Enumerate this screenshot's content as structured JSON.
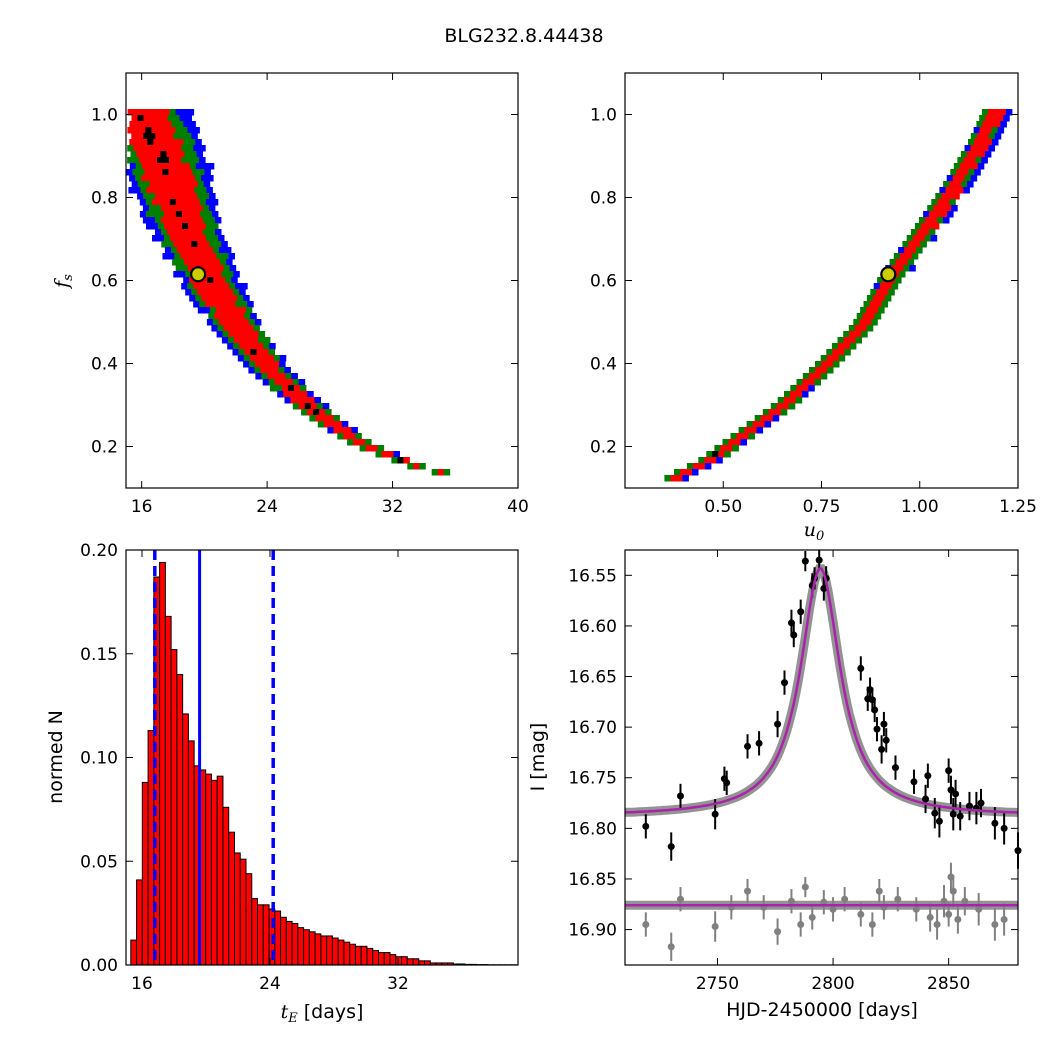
{
  "title": "BLG232.8.44438",
  "chart_data": [
    {
      "panel": "top-left",
      "type": "heatmap",
      "xlabel": "",
      "ylabel": "f_s",
      "xlim": [
        15,
        40
      ],
      "ylim": [
        0.1,
        1.1
      ],
      "xticks": [
        16,
        24,
        32,
        40
      ],
      "yticks": [
        0.2,
        0.4,
        0.6,
        0.8,
        1.0
      ],
      "xtick_labels": [
        "16",
        "24",
        "32",
        "40"
      ],
      "ytick_labels": [
        "0.2",
        "0.4",
        "0.6",
        "0.8",
        "1.0"
      ],
      "confidence_colors": [
        "#0000ff",
        "#008000",
        "#ff0000",
        "#000000"
      ],
      "ridge_curve": {
        "x": [
          15.6,
          17,
          18,
          19,
          20,
          21,
          22,
          24,
          26,
          28,
          30,
          32,
          34,
          36
        ],
        "y": [
          1.02,
          0.92,
          0.8,
          0.7,
          0.62,
          0.55,
          0.49,
          0.39,
          0.32,
          0.26,
          0.21,
          0.18,
          0.15,
          0.14
        ]
      },
      "best_fit": {
        "x": 19.6,
        "y": 0.615
      }
    },
    {
      "panel": "top-right",
      "type": "heatmap",
      "xlabel": "u_0",
      "ylabel": "",
      "xlim": [
        0.25,
        1.25
      ],
      "ylim": [
        0.1,
        1.1
      ],
      "xticks": [
        0.5,
        0.75,
        1.0,
        1.25
      ],
      "yticks": [
        0.2,
        0.4,
        0.6,
        0.8,
        1.0
      ],
      "xtick_labels": [
        "0.50",
        "0.75",
        "1.00",
        "1.25"
      ],
      "ytick_labels": [
        "0.2",
        "0.4",
        "0.6",
        "0.8",
        "1.0"
      ],
      "confidence_colors": [
        "#0000ff",
        "#008000",
        "#ff0000",
        "#000000"
      ],
      "ridge_curve": {
        "x": [
          0.37,
          0.45,
          0.55,
          0.65,
          0.75,
          0.85,
          0.92,
          1.0,
          1.08,
          1.15,
          1.19
        ],
        "y": [
          0.135,
          0.17,
          0.24,
          0.31,
          0.4,
          0.5,
          0.615,
          0.72,
          0.83,
          0.94,
          1.02
        ]
      },
      "best_fit": {
        "x": 0.92,
        "y": 0.615
      }
    },
    {
      "panel": "bottom-left",
      "type": "bar",
      "xlabel": "t_E [days]",
      "ylabel": "normed N",
      "xlim": [
        15,
        39.5
      ],
      "ylim": [
        0,
        0.2
      ],
      "xticks": [
        16,
        24,
        32
      ],
      "yticks": [
        0,
        0.05,
        0.1,
        0.15,
        0.2
      ],
      "xtick_labels": [
        "16",
        "24",
        "32"
      ],
      "ytick_labels": [
        "0.00",
        "0.05",
        "0.10",
        "0.15",
        "0.20"
      ],
      "bin_start": 15.3,
      "bin_width": 0.36,
      "values": [
        0.012,
        0.041,
        0.088,
        0.113,
        0.187,
        0.194,
        0.168,
        0.152,
        0.14,
        0.121,
        0.108,
        0.096,
        0.094,
        0.092,
        0.089,
        0.091,
        0.076,
        0.064,
        0.054,
        0.051,
        0.044,
        0.032,
        0.029,
        0.029,
        0.027,
        0.026,
        0.023,
        0.021,
        0.02,
        0.018,
        0.017,
        0.016,
        0.015,
        0.014,
        0.014,
        0.013,
        0.012,
        0.011,
        0.01,
        0.009,
        0.009,
        0.008,
        0.007,
        0.006,
        0.006,
        0.005,
        0.004,
        0.004,
        0.003,
        0.003,
        0.002,
        0.002,
        0.001,
        0.001,
        0.001,
        0.001,
        0.0005,
        0.0005,
        0.0003,
        0.0003,
        0.0002,
        0.0002,
        0.0001,
        0.0001,
        0.0001,
        0.0001,
        0.0001
      ],
      "median_line": 19.6,
      "interval_lines": [
        16.8,
        24.2
      ],
      "line_color": "#0000ff",
      "bar_color": "#ff0000"
    },
    {
      "panel": "bottom-right",
      "type": "scatter",
      "xlabel": "HJD-2450000 [days]",
      "ylabel": "I [mag]",
      "xlim": [
        2710,
        2880
      ],
      "ylim": [
        16.935,
        16.525
      ],
      "y_inverted": true,
      "xticks": [
        2750,
        2800,
        2850
      ],
      "yticks": [
        16.55,
        16.6,
        16.65,
        16.7,
        16.75,
        16.8,
        16.85,
        16.9
      ],
      "xtick_labels": [
        "2750",
        "2800",
        "2850"
      ],
      "ytick_labels": [
        "16.55",
        "16.60",
        "16.65",
        "16.70",
        "16.75",
        "16.80",
        "16.85",
        "16.90"
      ],
      "model": {
        "t0": 2794.5,
        "baseline": 16.788,
        "peak": 16.543,
        "width": 10.5,
        "color": "#aa22aa"
      },
      "residual_baseline": 16.876,
      "series": [
        {
          "color": "#000000",
          "x": [
            2719,
            2730,
            2734,
            2749,
            2753,
            2754,
            2763,
            2768,
            2776,
            2779,
            2782,
            2783,
            2786,
            2788,
            2791,
            2792,
            2794,
            2796,
            2797,
            2812,
            2815,
            2816,
            2817,
            2818,
            2819,
            2821,
            2822,
            2823,
            2827,
            2835,
            2840,
            2841,
            2844,
            2846,
            2850,
            2851,
            2852,
            2853,
            2855,
            2859,
            2862,
            2864,
            2870,
            2874,
            2880
          ],
          "y": [
            16.798,
            16.818,
            16.768,
            16.786,
            16.751,
            16.755,
            16.719,
            16.716,
            16.697,
            16.656,
            16.597,
            16.609,
            16.586,
            16.536,
            16.56,
            16.553,
            16.535,
            16.563,
            16.553,
            16.642,
            16.672,
            16.663,
            16.673,
            16.683,
            16.702,
            16.722,
            16.697,
            16.713,
            16.74,
            16.754,
            16.771,
            16.748,
            16.785,
            16.793,
            16.743,
            16.762,
            16.786,
            16.766,
            16.788,
            16.778,
            16.78,
            16.775,
            16.795,
            16.8,
            16.822
          ],
          "yerr": [
            0.012,
            0.014,
            0.012,
            0.015,
            0.012,
            0.012,
            0.012,
            0.012,
            0.013,
            0.012,
            0.013,
            0.012,
            0.012,
            0.01,
            0.012,
            0.011,
            0.01,
            0.012,
            0.012,
            0.012,
            0.012,
            0.012,
            0.012,
            0.012,
            0.012,
            0.014,
            0.012,
            0.012,
            0.012,
            0.012,
            0.014,
            0.012,
            0.015,
            0.016,
            0.012,
            0.014,
            0.016,
            0.014,
            0.014,
            0.014,
            0.016,
            0.014,
            0.016,
            0.016,
            0.018
          ]
        },
        {
          "color": "#808080",
          "x": [
            2719,
            2730,
            2734,
            2749,
            2756,
            2763,
            2770,
            2776,
            2782,
            2786,
            2788,
            2791,
            2796,
            2800,
            2805,
            2812,
            2817,
            2820,
            2822,
            2828,
            2836,
            2842,
            2845,
            2848,
            2850,
            2851,
            2852,
            2854,
            2857,
            2863,
            2870,
            2874
          ],
          "y": [
            16.895,
            16.917,
            16.87,
            16.897,
            16.878,
            16.862,
            16.878,
            16.902,
            16.872,
            16.895,
            16.858,
            16.888,
            16.873,
            16.88,
            16.87,
            16.885,
            16.895,
            16.862,
            16.878,
            16.87,
            16.88,
            16.888,
            16.895,
            16.872,
            16.885,
            16.848,
            16.862,
            16.89,
            16.872,
            16.88,
            16.895,
            16.89
          ],
          "yerr": [
            0.012,
            0.014,
            0.012,
            0.015,
            0.012,
            0.012,
            0.012,
            0.013,
            0.012,
            0.012,
            0.01,
            0.012,
            0.012,
            0.012,
            0.012,
            0.012,
            0.012,
            0.012,
            0.012,
            0.012,
            0.012,
            0.014,
            0.015,
            0.016,
            0.012,
            0.014,
            0.016,
            0.014,
            0.014,
            0.016,
            0.016,
            0.016
          ]
        }
      ]
    }
  ]
}
